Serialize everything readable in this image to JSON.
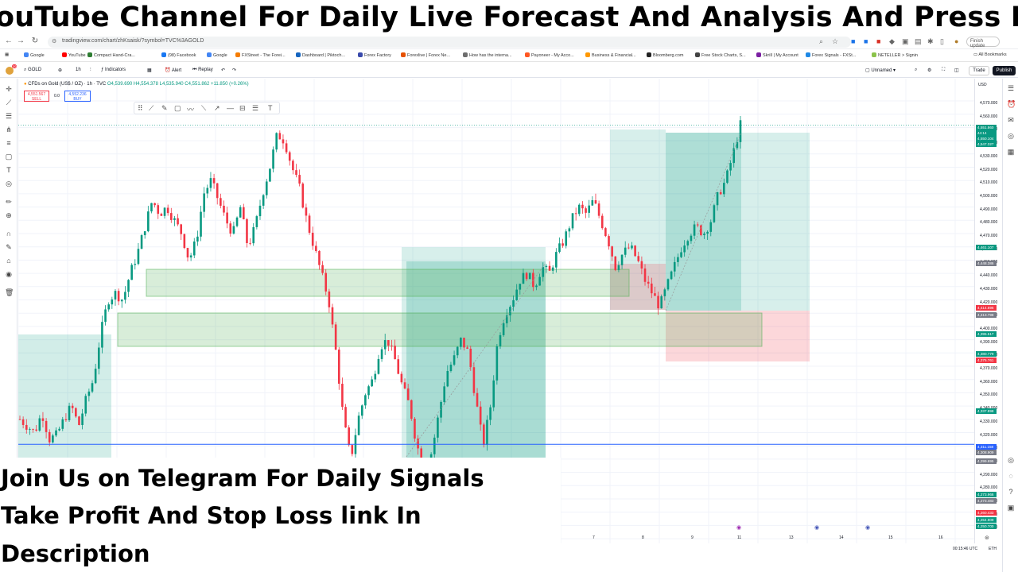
{
  "banner": {
    "text": "ouTube Channel For Daily Live Forecast And Analysis And Press Bell I"
  },
  "browser": {
    "url": "tradingview.com/chart/zhKsaisk/?symbol=TVC%3AGOLD",
    "finish_update": "Finish update",
    "all_bookmarks": "All Bookmarks",
    "bookmarks": [
      "Google",
      "YouTube",
      "Compact Hand-Cra...",
      "(98) Facebook",
      "Google",
      "FXStreet - The Forei...",
      "Dashboard | Piktoch...",
      "Forex Factory",
      "Forexlive | Forex Ne...",
      "How has the interna...",
      "Payoneer - My Acco...",
      "Business & Financial...",
      "Bloomberg.com",
      "Free Stock Charts, S...",
      "Skrill | My Account",
      "Forex Signals - FXSt...",
      "NETELLER > Signin"
    ],
    "bookmark_colors": [
      "#4285f4",
      "#ff0000",
      "#2e7d32",
      "#1877f2",
      "#4285f4",
      "#f57c00",
      "#1565c0",
      "#3949ab",
      "#e65100",
      "#6d6d6d",
      "#ff5722",
      "#ff9800",
      "#222222",
      "#424242",
      "#7b1fa2",
      "#1e88e5",
      "#8bc34a"
    ]
  },
  "toolbar": {
    "symbol": "GOLD",
    "interval": "1h",
    "indicators": "Indicators",
    "alert": "Alert",
    "replay": "Replay",
    "unnamed": "Unnamed",
    "trade": "Trade",
    "publish": "Publish",
    "notif_count": "20"
  },
  "legend": {
    "title": "CFDs on Gold (US$ / OZ) · 1h · TVC",
    "ohlc": "O4,539.690 H4,554.378 L4,535.940 C4,551.862 +11.850 (+0.26%)",
    "sell_price": "4,551.567",
    "sell_label": "SELL",
    "spread": "0.0",
    "buy_price": "4,552.236",
    "buy_label": "BUY"
  },
  "price_scale": {
    "currency": "USD",
    "ticks": [
      "4,570.000",
      "4,560.000",
      "4,550.000",
      "4,540.000",
      "4,530.000",
      "4,520.000",
      "4,510.000",
      "4,500.000",
      "4,490.000",
      "4,480.000",
      "4,470.000",
      "4,460.000",
      "4,450.000",
      "4,440.000",
      "4,430.000",
      "4,420.000",
      "4,410.000",
      "4,400.000",
      "4,390.000",
      "4,380.000",
      "4,370.000",
      "4,360.000",
      "4,350.000",
      "4,340.000",
      "4,330.000",
      "4,320.000",
      "4,310.000",
      "4,300.000",
      "4,290.000",
      "4,280.000",
      "4,270.000",
      "4,260.000",
      "4,250.000"
    ],
    "labels": [
      {
        "text": "4,551.860",
        "color": "#089981"
      },
      {
        "text": "44:14",
        "color": "#089981"
      },
      {
        "text": "4,550.104",
        "color": "#089981"
      },
      {
        "text": "4,547.327",
        "color": "#089981"
      },
      {
        "text": "4,461.107",
        "color": "#089981"
      },
      {
        "text": "4,448.386",
        "color": "#787b86"
      },
      {
        "text": "4,414.696",
        "color": "#f23645"
      },
      {
        "text": "4,413.798",
        "color": "#787b86"
      },
      {
        "text": "4,395.517",
        "color": "#089981"
      },
      {
        "text": "4,380.779",
        "color": "#089981"
      },
      {
        "text": "4,375.761",
        "color": "#f23645"
      },
      {
        "text": "4,337.898",
        "color": "#089981"
      },
      {
        "text": "4,311.158",
        "color": "#2962ff"
      },
      {
        "text": "4,308.909",
        "color": "#787b86"
      },
      {
        "text": "4,299.695",
        "color": "#787b86"
      },
      {
        "text": "4,273.966",
        "color": "#089981"
      },
      {
        "text": "4,273.483",
        "color": "#787b86"
      },
      {
        "text": "4,260.433",
        "color": "#f23645"
      },
      {
        "text": "4,254.909",
        "color": "#089981"
      },
      {
        "text": "4,250.700",
        "color": "#089981"
      }
    ]
  },
  "time_axis": {
    "labels": [
      "7",
      "8",
      "9",
      "11",
      "13",
      "14",
      "15",
      "16"
    ]
  },
  "status": {
    "clock": "00:15:46 UTC",
    "session": "ETH"
  },
  "overlay": {
    "line1": "Join Us on Telegram For Daily Signals",
    "line2": "Take Profit And Stop Loss link In",
    "line3": "Description"
  },
  "chart_data": {
    "type": "candlestick",
    "title": "CFDs on Gold (US$ / OZ) · 1h · TVC",
    "ylim": [
      4245,
      4575
    ],
    "close_path": [
      4330,
      4325,
      4320,
      4335,
      4315,
      4318,
      4330,
      4340,
      4325,
      4345,
      4360,
      4395,
      4420,
      4425,
      4420,
      4440,
      4455,
      4475,
      4495,
      4485,
      4490,
      4480,
      4470,
      4450,
      4465,
      4500,
      4510,
      4495,
      4480,
      4470,
      4490,
      4460,
      4475,
      4500,
      4520,
      4545,
      4540,
      4520,
      4505,
      4480,
      4460,
      4440,
      4420,
      4380,
      4330,
      4300,
      4330,
      4350,
      4360,
      4385,
      4390,
      4375,
      4355,
      4340,
      4310,
      4295,
      4305,
      4335,
      4365,
      4375,
      4390,
      4380,
      4345,
      4310,
      4340,
      4390,
      4410,
      4420,
      4435,
      4440,
      4430,
      4445,
      4440,
      4455,
      4465,
      4480,
      4490,
      4485,
      4495,
      4480,
      4465,
      4445,
      4455,
      4460,
      4450,
      4435,
      4425,
      4415,
      4430,
      4445,
      4460,
      4470,
      4475,
      4470,
      4480,
      4500,
      4510,
      4530,
      4552
    ],
    "levels": [
      {
        "name": "blue-line",
        "value": 4311.158
      }
    ]
  }
}
